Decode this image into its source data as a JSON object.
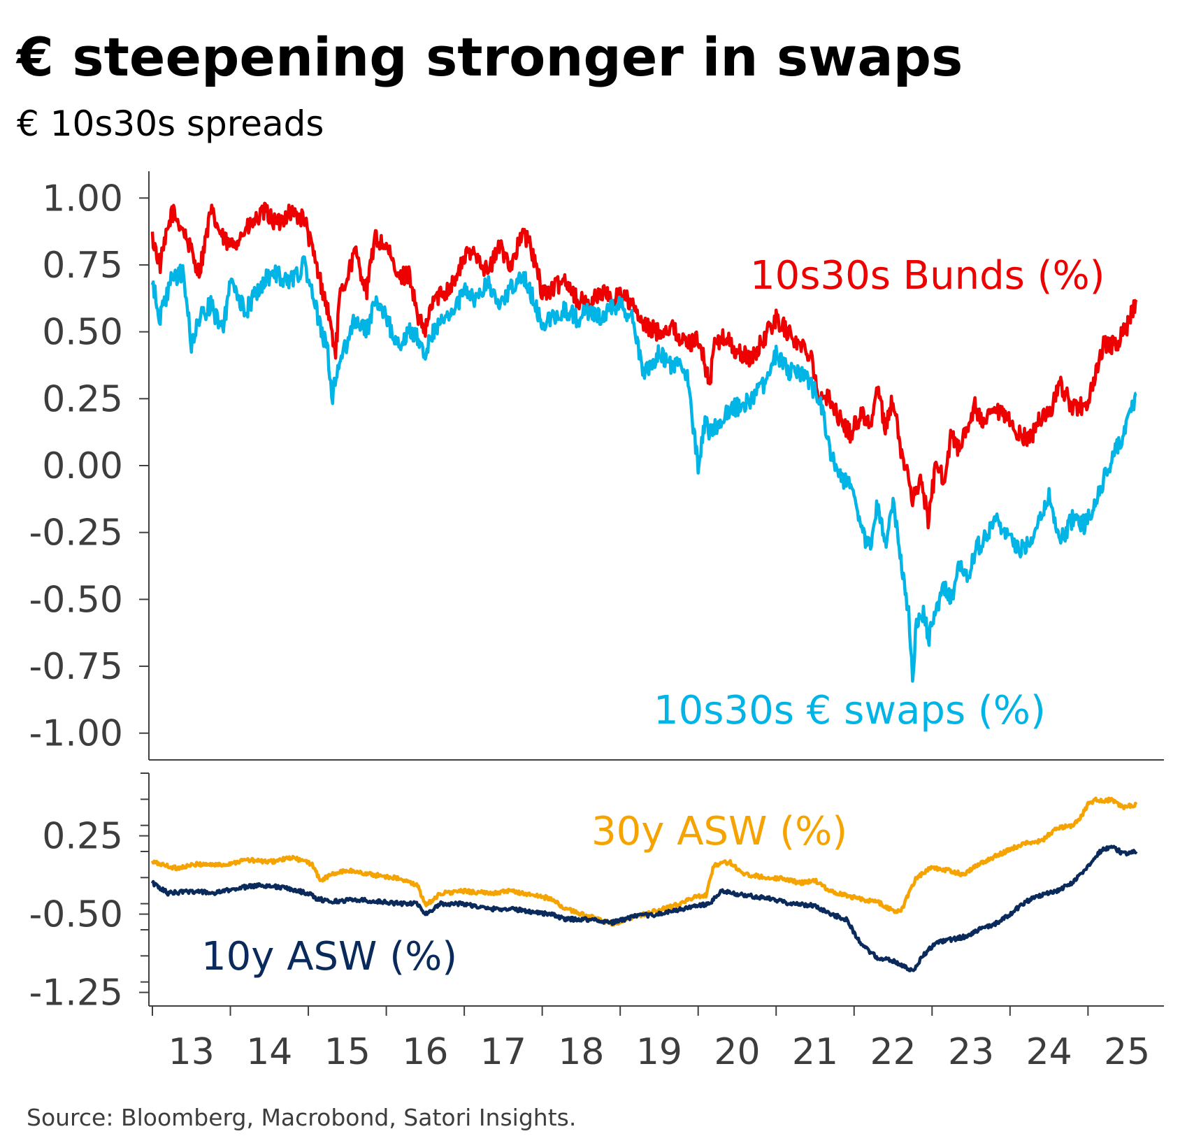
{
  "chart_data": {
    "type": "line",
    "title": "€ steepening stronger in swaps",
    "subtitle": "€ 10s30s spreads",
    "source": "Source: Bloomberg, Macrobond, Satori Insights.",
    "x_tick_labels": [
      "13",
      "14",
      "15",
      "16",
      "17",
      "18",
      "19",
      "20",
      "21",
      "22",
      "23",
      "24",
      "25"
    ],
    "x_range": [
      2013.0,
      2025.75
    ],
    "panels": [
      {
        "name": "top",
        "ylim": [
          -1.1,
          1.1
        ],
        "y_ticks": [
          1.0,
          0.75,
          0.5,
          0.25,
          0.0,
          -0.25,
          -0.5,
          -0.75,
          -1.0
        ],
        "y_tick_labels": [
          "1.00",
          "0.75",
          "0.50",
          "0.25",
          "0.00",
          "-0.25",
          "-0.50",
          "-0.75",
          "-1.00"
        ],
        "series": [
          {
            "name": "10s30s Bunds (%)",
            "color": "#ee0000",
            "x": [
              2013.0,
              2013.1,
              2013.25,
              2013.4,
              2013.6,
              2013.75,
              2013.9,
              2014.0,
              2014.2,
              2014.45,
              2014.6,
              2014.75,
              2014.95,
              2015.1,
              2015.25,
              2015.35,
              2015.4,
              2015.6,
              2015.75,
              2015.85,
              2016.0,
              2016.15,
              2016.3,
              2016.4,
              2016.5,
              2016.6,
              2016.75,
              2016.9,
              2017.0,
              2017.15,
              2017.3,
              2017.45,
              2017.6,
              2017.75,
              2017.85,
              2018.0,
              2018.1,
              2018.3,
              2018.45,
              2018.6,
              2018.75,
              2018.9,
              2019.0,
              2019.15,
              2019.3,
              2019.5,
              2019.65,
              2019.85,
              2020.0,
              2020.15,
              2020.2,
              2020.35,
              2020.5,
              2020.7,
              2020.85,
              2021.0,
              2021.15,
              2021.3,
              2021.45,
              2021.55,
              2021.7,
              2021.8,
              2021.95,
              2022.1,
              2022.2,
              2022.3,
              2022.4,
              2022.5,
              2022.6,
              2022.7,
              2022.75,
              2022.85,
              2022.95,
              2023.05,
              2023.15,
              2023.25,
              2023.35,
              2023.45,
              2023.55,
              2023.65,
              2023.8,
              2023.95,
              2024.1,
              2024.25,
              2024.4,
              2024.5,
              2024.65,
              2024.8,
              2024.95,
              2025.05,
              2025.2,
              2025.35,
              2025.5,
              2025.62
            ],
            "y": [
              0.85,
              0.75,
              0.95,
              0.88,
              0.72,
              0.95,
              0.85,
              0.82,
              0.88,
              0.95,
              0.9,
              0.95,
              0.92,
              0.75,
              0.58,
              0.42,
              0.62,
              0.8,
              0.65,
              0.85,
              0.82,
              0.7,
              0.72,
              0.55,
              0.5,
              0.62,
              0.65,
              0.7,
              0.78,
              0.8,
              0.72,
              0.82,
              0.75,
              0.87,
              0.82,
              0.65,
              0.65,
              0.7,
              0.62,
              0.6,
              0.65,
              0.62,
              0.65,
              0.6,
              0.52,
              0.5,
              0.52,
              0.45,
              0.48,
              0.3,
              0.45,
              0.48,
              0.42,
              0.4,
              0.48,
              0.55,
              0.5,
              0.45,
              0.42,
              0.25,
              0.25,
              0.18,
              0.12,
              0.2,
              0.15,
              0.28,
              0.15,
              0.25,
              0.05,
              -0.05,
              -0.12,
              -0.05,
              -0.2,
              0.0,
              -0.05,
              0.12,
              0.05,
              0.15,
              0.22,
              0.15,
              0.2,
              0.18,
              0.12,
              0.1,
              0.18,
              0.2,
              0.3,
              0.22,
              0.22,
              0.28,
              0.45,
              0.45,
              0.52,
              0.62
            ]
          },
          {
            "name": "10s30s € swaps (%)",
            "color": "#00b4e6",
            "x": [
              2013.0,
              2013.1,
              2013.25,
              2013.4,
              2013.5,
              2013.6,
              2013.75,
              2013.9,
              2014.0,
              2014.2,
              2014.45,
              2014.6,
              2014.75,
              2014.95,
              2015.1,
              2015.25,
              2015.3,
              2015.4,
              2015.6,
              2015.75,
              2015.85,
              2016.0,
              2016.15,
              2016.3,
              2016.4,
              2016.5,
              2016.6,
              2016.75,
              2016.9,
              2017.0,
              2017.15,
              2017.3,
              2017.45,
              2017.6,
              2017.75,
              2017.85,
              2018.0,
              2018.1,
              2018.3,
              2018.45,
              2018.6,
              2018.75,
              2018.9,
              2019.0,
              2019.15,
              2019.3,
              2019.5,
              2019.65,
              2019.85,
              2020.0,
              2020.1,
              2020.15,
              2020.25,
              2020.35,
              2020.5,
              2020.7,
              2020.85,
              2021.0,
              2021.15,
              2021.3,
              2021.45,
              2021.55,
              2021.7,
              2021.8,
              2021.9,
              2022.0,
              2022.1,
              2022.2,
              2022.3,
              2022.4,
              2022.5,
              2022.6,
              2022.7,
              2022.75,
              2022.8,
              2022.9,
              2022.95,
              2023.05,
              2023.15,
              2023.25,
              2023.35,
              2023.45,
              2023.55,
              2023.65,
              2023.8,
              2023.95,
              2024.1,
              2024.25,
              2024.4,
              2024.5,
              2024.65,
              2024.8,
              2024.95,
              2025.05,
              2025.2,
              2025.35,
              2025.5,
              2025.62
            ],
            "y": [
              0.68,
              0.55,
              0.7,
              0.72,
              0.45,
              0.55,
              0.6,
              0.5,
              0.68,
              0.58,
              0.7,
              0.72,
              0.68,
              0.75,
              0.58,
              0.42,
              0.25,
              0.38,
              0.55,
              0.5,
              0.62,
              0.55,
              0.45,
              0.5,
              0.48,
              0.42,
              0.5,
              0.55,
              0.6,
              0.65,
              0.62,
              0.68,
              0.6,
              0.67,
              0.72,
              0.65,
              0.52,
              0.55,
              0.58,
              0.55,
              0.58,
              0.55,
              0.6,
              0.6,
              0.55,
              0.35,
              0.42,
              0.38,
              0.35,
              0.0,
              0.18,
              0.12,
              0.15,
              0.2,
              0.22,
              0.25,
              0.3,
              0.42,
              0.35,
              0.35,
              0.3,
              0.25,
              0.05,
              -0.05,
              -0.05,
              -0.12,
              -0.25,
              -0.3,
              -0.15,
              -0.3,
              -0.12,
              -0.35,
              -0.55,
              -0.78,
              -0.6,
              -0.55,
              -0.65,
              -0.55,
              -0.45,
              -0.5,
              -0.35,
              -0.42,
              -0.32,
              -0.28,
              -0.2,
              -0.25,
              -0.32,
              -0.28,
              -0.18,
              -0.12,
              -0.28,
              -0.2,
              -0.22,
              -0.18,
              -0.05,
              0.05,
              0.15,
              0.27
            ]
          }
        ]
      },
      {
        "name": "bottom",
        "ylim": [
          -1.38,
          0.85
        ],
        "y_ticks": [
          0.25,
          -0.5,
          -1.25
        ],
        "y_tick_labels": [
          "0.25",
          "-0.50",
          "-1.25"
        ],
        "series": [
          {
            "name": "30y ASW (%)",
            "color": "#f5a300",
            "x": [
              2013.0,
              2013.3,
              2013.6,
              2013.9,
              2014.2,
              2014.5,
              2014.8,
              2015.05,
              2015.15,
              2015.3,
              2015.5,
              2015.8,
              2016.1,
              2016.4,
              2016.5,
              2016.7,
              2017.0,
              2017.3,
              2017.6,
              2017.9,
              2018.1,
              2018.3,
              2018.6,
              2018.9,
              2019.1,
              2019.4,
              2019.7,
              2019.9,
              2020.1,
              2020.2,
              2020.4,
              2020.6,
              2020.9,
              2021.1,
              2021.3,
              2021.5,
              2021.7,
              2021.9,
              2022.1,
              2022.3,
              2022.45,
              2022.6,
              2022.7,
              2022.8,
              2023.0,
              2023.2,
              2023.4,
              2023.6,
              2023.8,
              2024.0,
              2024.2,
              2024.4,
              2024.6,
              2024.8,
              2024.9,
              2025.0,
              2025.1,
              2025.2,
              2025.3,
              2025.45,
              2025.62
            ],
            "y": [
              0.0,
              -0.06,
              -0.02,
              -0.03,
              0.02,
              0.0,
              0.04,
              -0.02,
              -0.18,
              -0.12,
              -0.08,
              -0.12,
              -0.15,
              -0.22,
              -0.42,
              -0.3,
              -0.28,
              -0.3,
              -0.28,
              -0.32,
              -0.35,
              -0.45,
              -0.52,
              -0.6,
              -0.55,
              -0.48,
              -0.42,
              -0.35,
              -0.32,
              -0.03,
              0.0,
              -0.12,
              -0.15,
              -0.16,
              -0.2,
              -0.18,
              -0.28,
              -0.32,
              -0.36,
              -0.38,
              -0.45,
              -0.48,
              -0.3,
              -0.15,
              -0.05,
              -0.08,
              -0.12,
              -0.02,
              0.05,
              0.12,
              0.18,
              0.2,
              0.32,
              0.35,
              0.42,
              0.55,
              0.6,
              0.58,
              0.6,
              0.52,
              0.55
            ]
          },
          {
            "name": "10y ASW (%)",
            "color": "#0a2a5c",
            "x": [
              2013.0,
              2013.2,
              2013.5,
              2013.8,
              2014.1,
              2014.4,
              2014.7,
              2015.0,
              2015.1,
              2015.3,
              2015.6,
              2015.9,
              2016.2,
              2016.4,
              2016.5,
              2016.7,
              2017.0,
              2017.3,
              2017.6,
              2017.9,
              2018.1,
              2018.3,
              2018.6,
              2018.9,
              2019.2,
              2019.5,
              2019.8,
              2020.0,
              2020.15,
              2020.3,
              2020.6,
              2020.9,
              2021.2,
              2021.5,
              2021.7,
              2021.9,
              2022.1,
              2022.3,
              2022.5,
              2022.65,
              2022.75,
              2022.9,
              2023.05,
              2023.2,
              2023.4,
              2023.6,
              2023.8,
              2024.0,
              2024.2,
              2024.4,
              2024.6,
              2024.8,
              2025.0,
              2025.15,
              2025.3,
              2025.45,
              2025.62
            ],
            "y": [
              -0.2,
              -0.3,
              -0.28,
              -0.3,
              -0.25,
              -0.22,
              -0.25,
              -0.3,
              -0.35,
              -0.38,
              -0.36,
              -0.38,
              -0.4,
              -0.4,
              -0.5,
              -0.4,
              -0.4,
              -0.45,
              -0.45,
              -0.48,
              -0.5,
              -0.55,
              -0.55,
              -0.58,
              -0.52,
              -0.5,
              -0.45,
              -0.42,
              -0.4,
              -0.28,
              -0.32,
              -0.35,
              -0.4,
              -0.42,
              -0.5,
              -0.55,
              -0.8,
              -0.92,
              -0.95,
              -1.0,
              -1.05,
              -0.88,
              -0.78,
              -0.75,
              -0.72,
              -0.65,
              -0.6,
              -0.5,
              -0.38,
              -0.32,
              -0.28,
              -0.2,
              -0.05,
              0.1,
              0.15,
              0.08,
              0.1
            ]
          }
        ]
      }
    ]
  }
}
